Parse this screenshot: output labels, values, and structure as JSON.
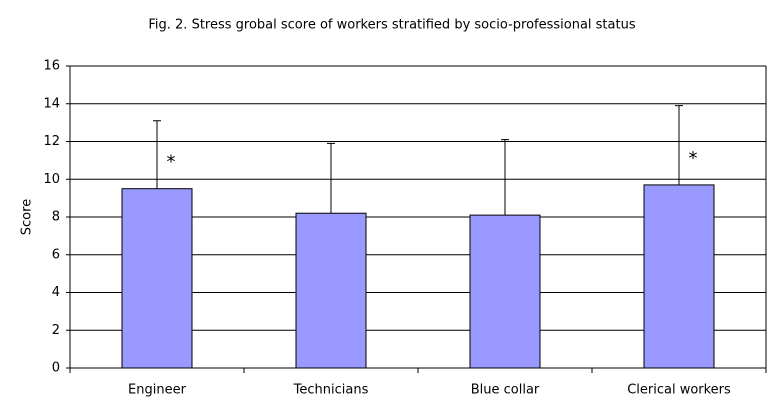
{
  "chart_data": {
    "type": "bar",
    "title": "Fig. 2. Stress grobal score of workers stratified by socio-professional status",
    "y_label": "Score",
    "categories": [
      "Engineer",
      "Technicians",
      "Blue collar",
      "Clerical workers"
    ],
    "values": [
      9.5,
      8.2,
      8.1,
      9.7
    ],
    "errors": [
      3.6,
      3.7,
      4.0,
      4.2
    ],
    "markers": [
      "*",
      null,
      null,
      "*"
    ],
    "color": "#9999ff",
    "ylim": [
      0,
      16
    ],
    "yticks": [
      0,
      2,
      4,
      6,
      8,
      10,
      12,
      14,
      16
    ],
    "grid": true
  }
}
